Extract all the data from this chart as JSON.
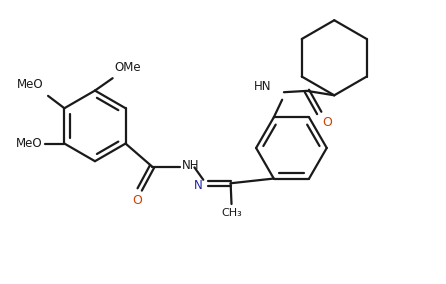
{
  "bg_color": "#ffffff",
  "line_color": "#1a1a1a",
  "bond_width": 1.6,
  "font_size": 8.5,
  "label_color_N": "#2222aa",
  "label_color_O": "#cc4400",
  "label_color_default": "#1a1a1a",
  "figsize": [
    4.46,
    2.84
  ],
  "dpi": 100,
  "xlim": [
    0,
    10
  ],
  "ylim": [
    0,
    6.37
  ]
}
